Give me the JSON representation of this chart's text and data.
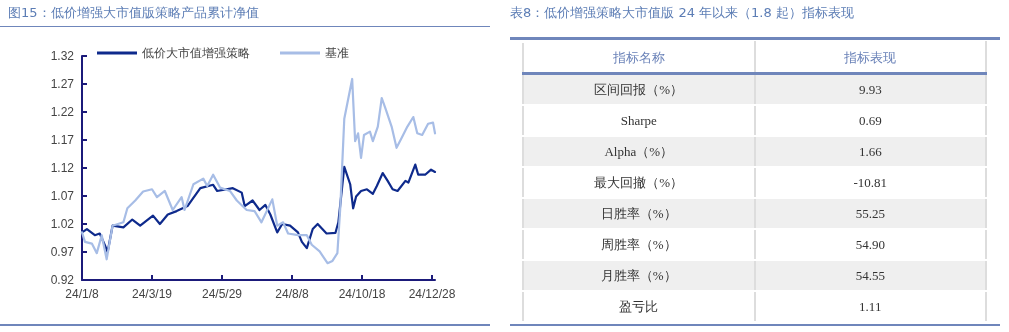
{
  "chart_data": [
    {
      "type": "line",
      "title": "图15：低价增强大市值版策略产品累计净值",
      "legend": "top",
      "grid": false,
      "marker": "none",
      "line_style": "solid",
      "xlim": [
        "--01-08",
        "--12-31"
      ],
      "xticks": [
        {
          "value": "--01-08",
          "label": "24/1/8"
        },
        {
          "value": "--03-19",
          "label": "24/3/19"
        },
        {
          "value": "--05-29",
          "label": "24/5/29"
        },
        {
          "value": "--08-08",
          "label": "24/8/8"
        },
        {
          "value": "--10-18",
          "label": "24/10/18"
        },
        {
          "value": "--12-28",
          "label": "24/12/28"
        }
      ],
      "ylim": [
        0.92,
        1.32
      ],
      "yticks": [
        0.92,
        0.97,
        1.02,
        1.07,
        1.12,
        1.17,
        1.22,
        1.27,
        1.32
      ],
      "series": [
        {
          "name": "低价大市值增强策略",
          "color": "#0e2a8c",
          "x": [
            "--01-08",
            "--01-13",
            "--01-21",
            "--01-26",
            "--01-31",
            "--02-03",
            "--02-08",
            "--02-19",
            "--02-28",
            "--03-07",
            "--03-20",
            "--03-27",
            "--04-04",
            "--04-13",
            "--04-24",
            "--05-07",
            "--05-20",
            "--05-24",
            "--06-09",
            "--06-18",
            "--06-21",
            "--06-29",
            "--07-06",
            "--07-12",
            "--07-17",
            "--07-24",
            "--07-29",
            "--08-06",
            "--08-14",
            "--08-18",
            "--08-23",
            "--08-29",
            "--09-03",
            "--09-12",
            "--09-21",
            "--09-24",
            "--09-30",
            "--10-06",
            "--10-09",
            "--10-12",
            "--10-17",
            "--10-23",
            "--10-29",
            "--11-02",
            "--11-08",
            "--11-13",
            "--11-18",
            "--11-23",
            "--12-01",
            "--12-04",
            "--12-11",
            "--12-14",
            "--12-21",
            "--12-27",
            "--12-31"
          ],
          "values": [
            1.005,
            1.011,
            1.0,
            1.003,
            0.983,
            0.97,
            1.017,
            1.014,
            1.028,
            1.017,
            1.035,
            1.02,
            1.037,
            1.043,
            1.052,
            1.084,
            1.09,
            1.079,
            1.084,
            1.076,
            1.052,
            1.062,
            1.045,
            1.054,
            1.037,
            1.005,
            1.02,
            1.017,
            1.005,
            0.988,
            0.977,
            1.011,
            1.02,
            1.003,
            1.004,
            1.023,
            1.122,
            1.091,
            1.048,
            1.069,
            1.079,
            1.082,
            1.074,
            1.088,
            1.111,
            1.097,
            1.082,
            1.079,
            1.097,
            1.094,
            1.126,
            1.108,
            1.108,
            1.117,
            1.113
          ]
        },
        {
          "name": "基准",
          "color": "#a7bde6",
          "x": [
            "--01-08",
            "--01-11",
            "--01-18",
            "--01-23",
            "--01-28",
            "--02-02",
            "--02-08",
            "--02-19",
            "--02-23",
            "--03-02",
            "--03-10",
            "--03-19",
            "--03-24",
            "--04-01",
            "--04-09",
            "--04-18",
            "--04-21",
            "--04-30",
            "--05-10",
            "--05-14",
            "--05-20",
            "--05-27",
            "--06-06",
            "--06-13",
            "--06-23",
            "--07-01",
            "--07-08",
            "--07-19",
            "--07-24",
            "--07-30",
            "--08-04",
            "--08-14",
            "--08-23",
            "--08-28",
            "--09-05",
            "--09-13",
            "--09-18",
            "--09-23",
            "--09-26",
            "--09-30",
            "--10-08",
            "--10-11",
            "--10-14",
            "--10-17",
            "--10-20",
            "--10-26",
            "--10-29",
            "--11-03",
            "--11-07",
            "--11-11",
            "--11-17",
            "--11-22",
            "--11-27",
            "--12-03",
            "--12-09",
            "--12-13",
            "--12-18",
            "--12-24",
            "--12-29",
            "--12-31"
          ],
          "values": [
            1.005,
            0.988,
            0.985,
            0.968,
            1.0,
            0.957,
            1.017,
            1.023,
            1.048,
            1.062,
            1.078,
            1.082,
            1.068,
            1.079,
            1.045,
            1.068,
            1.045,
            1.091,
            1.101,
            1.088,
            1.108,
            1.085,
            1.079,
            1.062,
            1.045,
            1.043,
            1.023,
            1.064,
            1.017,
            1.023,
            1.003,
            1.0,
            1.0,
            0.983,
            0.971,
            0.95,
            0.954,
            0.968,
            1.051,
            1.208,
            1.279,
            1.168,
            1.182,
            1.138,
            1.179,
            1.185,
            1.168,
            1.194,
            1.245,
            1.225,
            1.194,
            1.156,
            1.173,
            1.194,
            1.211,
            1.182,
            1.179,
            1.199,
            1.201,
            1.182
          ]
        }
      ]
    },
    {
      "type": "other",
      "title": "表8：低价增强策略大市值版 24 年以来（1.8 起）指标表现",
      "annotations": [
        "指标名称",
        "指标表现"
      ],
      "categories": [
        "区间回报（%）",
        "Sharpe",
        "Alpha（%）",
        "最大回撤（%）",
        "日胜率（%）",
        "周胜率（%）",
        "月胜率（%）",
        "盈亏比"
      ],
      "value_labels": [
        "9.93",
        "0.69",
        "1.66",
        "-10.81",
        "55.25",
        "54.90",
        "54.55",
        "1.11"
      ]
    }
  ]
}
